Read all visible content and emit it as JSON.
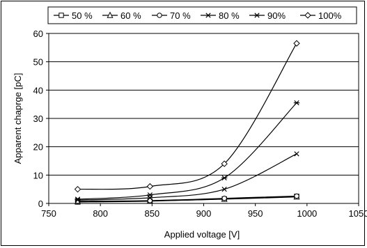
{
  "chart_data": {
    "type": "line",
    "xlabel": "Applied voltage [V]",
    "ylabel": "Apparent chaprge [pC]",
    "xlim": [
      750,
      1050
    ],
    "ylim": [
      0,
      60
    ],
    "xticks": [
      750,
      800,
      850,
      900,
      950,
      1000,
      1050
    ],
    "yticks": [
      0,
      10,
      20,
      30,
      40,
      50,
      60
    ],
    "grid": "horizontal",
    "legend_position": "top",
    "x": [
      778,
      848,
      920,
      990
    ],
    "series": [
      {
        "name": "50 %",
        "marker": "square",
        "values": [
          0.5,
          0.8,
          1.6,
          2.5
        ]
      },
      {
        "name": "60 %",
        "marker": "triangle",
        "values": [
          0.6,
          0.9,
          1.5,
          2.3
        ]
      },
      {
        "name": "70 %",
        "marker": "circle",
        "values": [
          0.8,
          1.0,
          1.8,
          2.6
        ]
      },
      {
        "name": "80 %",
        "marker": "x",
        "values": [
          1.2,
          2.0,
          5.0,
          17.5
        ]
      },
      {
        "name": "90%",
        "marker": "star",
        "values": [
          1.5,
          3.0,
          9.0,
          35.5
        ]
      },
      {
        "name": "100%",
        "marker": "diamond",
        "values": [
          5.0,
          6.0,
          14.0,
          56.5
        ]
      }
    ]
  }
}
